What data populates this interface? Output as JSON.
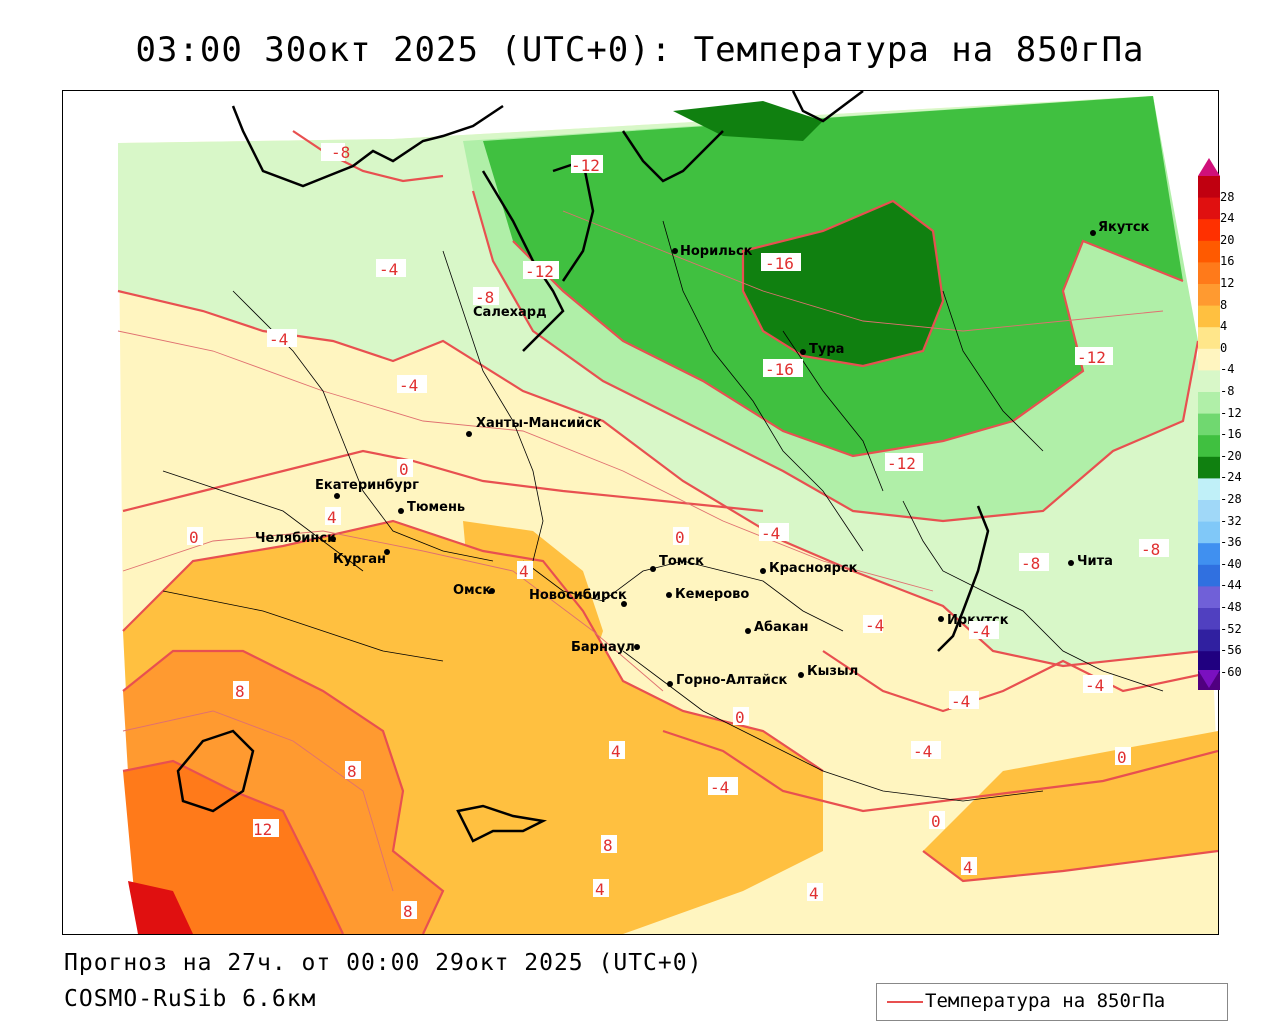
{
  "title": "03:00 30окт 2025 (UTC+0): Температура на 850гПа",
  "footer": {
    "forecast": "Прогноз на 27ч. от 00:00 29окт 2025 (UTC+0)",
    "model": "COSMO-RuSib 6.6км"
  },
  "legend": {
    "label": "Температура на 850гПа",
    "color": "#e85050"
  },
  "colorbar": {
    "ticks": [
      "28",
      "24",
      "20",
      "16",
      "12",
      "8",
      "4",
      "0",
      "-4",
      "-8",
      "-12",
      "-16",
      "-20",
      "-24",
      "-28",
      "-32",
      "-36",
      "-40",
      "-44",
      "-48",
      "-52",
      "-56",
      "-60"
    ],
    "colors": [
      "#c00010",
      "#e01010",
      "#ff3000",
      "#ff5a00",
      "#ff7a1a",
      "#ff9a30",
      "#ffc040",
      "#ffe68a",
      "#fff5c0",
      "#d8f7c8",
      "#b0efa8",
      "#70d870",
      "#40c040",
      "#108010",
      "#c0f0f8",
      "#a0d8f8",
      "#80c8f8",
      "#4090f0",
      "#3070e0",
      "#7060d8",
      "#5040c0",
      "#3020a0",
      "#200080",
      "#500080"
    ]
  },
  "cities": [
    {
      "name": "Норильск"
    },
    {
      "name": "Якутск"
    },
    {
      "name": "Салехард"
    },
    {
      "name": "Тура"
    },
    {
      "name": "Ханты-Мансийск"
    },
    {
      "name": "Екатеринбург"
    },
    {
      "name": "Тюмень"
    },
    {
      "name": "Челябинск"
    },
    {
      "name": "Курган"
    },
    {
      "name": "Омск"
    },
    {
      "name": "Новосибирск"
    },
    {
      "name": "Томск"
    },
    {
      "name": "Кемерово"
    },
    {
      "name": "Красноярск"
    },
    {
      "name": "Барнаул"
    },
    {
      "name": "Абакан"
    },
    {
      "name": "Иркутск"
    },
    {
      "name": "Чита"
    },
    {
      "name": "Горно-Алтайск"
    },
    {
      "name": "Кызыл"
    }
  ],
  "contour_labels": [
    "-8",
    "-12",
    "-4",
    "-12",
    "-8",
    "-16",
    "-4",
    "-16",
    "-12",
    "-4",
    "-12",
    "0",
    "4",
    "0",
    "0",
    "-4",
    "-8",
    "-8",
    "4",
    "-4",
    "-4",
    "-4",
    "8",
    "0",
    "-4",
    "4",
    "8",
    "-4",
    "0",
    "-4",
    "12",
    "0",
    "8",
    "4",
    "4",
    "8",
    "4"
  ]
}
